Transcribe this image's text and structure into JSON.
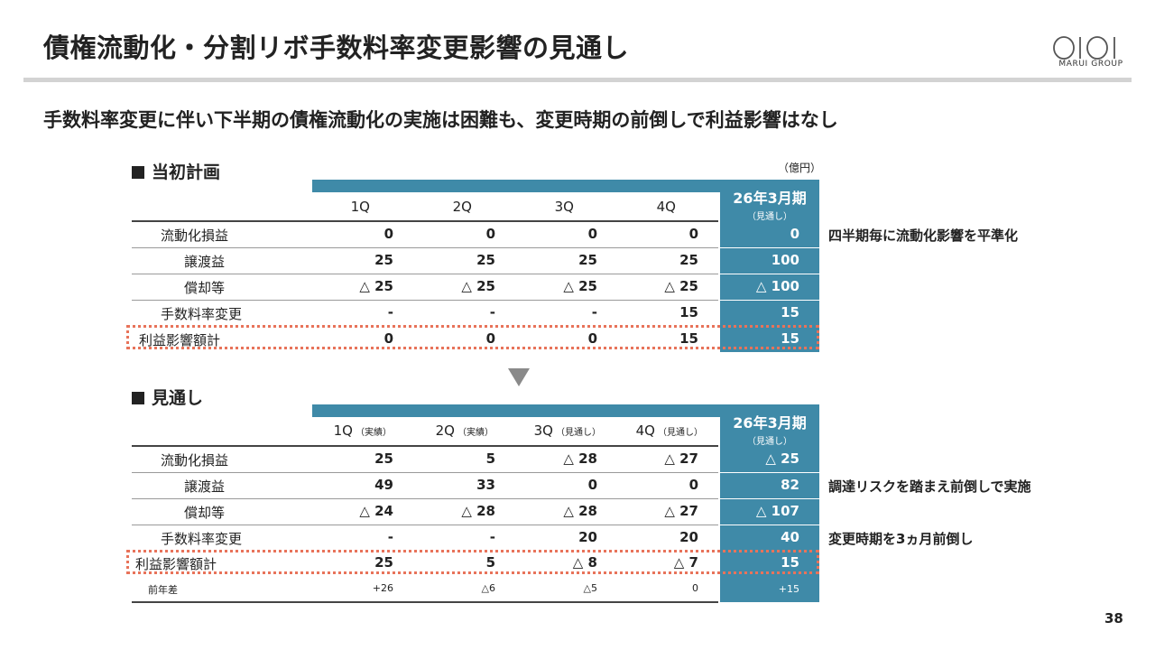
{
  "header": {
    "title": "債権流動化・分割リボ手数料率変更影響の見通し",
    "logo_text": "MARUI GROUP"
  },
  "subtitle": "手数料率変更に伴い下半期の債権流動化の実施は困難も、変更時期の前倒しで利益影響はなし",
  "unit": "（億円）",
  "plan": {
    "label": "当初計画",
    "columns": [
      {
        "label": "1Q",
        "note": ""
      },
      {
        "label": "2Q",
        "note": ""
      },
      {
        "label": "3Q",
        "note": ""
      },
      {
        "label": "4Q",
        "note": ""
      }
    ],
    "fy_label": "26年3月期",
    "fy_note": "（見通し）",
    "rows": [
      {
        "label": "流動化損益",
        "values": [
          "0",
          "0",
          "0",
          "0"
        ],
        "fy": "0",
        "note": "四半期毎に流動化影響を平準化"
      },
      {
        "label": "譲渡益",
        "values": [
          "25",
          "25",
          "25",
          "25"
        ],
        "fy": "100",
        "note": ""
      },
      {
        "label": "償却等",
        "values": [
          "△ 25",
          "△ 25",
          "△ 25",
          "△ 25"
        ],
        "fy": "△ 100",
        "note": ""
      },
      {
        "label": "手数料率変更",
        "values": [
          "-",
          "-",
          "-",
          "15"
        ],
        "fy": "15",
        "note": ""
      },
      {
        "label": "利益影響額計",
        "values": [
          "0",
          "0",
          "0",
          "15"
        ],
        "fy": "15",
        "note": ""
      }
    ]
  },
  "outlook": {
    "label": "見通し",
    "columns": [
      {
        "label": "1Q",
        "note": "（実績）"
      },
      {
        "label": "2Q",
        "note": "（実績）"
      },
      {
        "label": "3Q",
        "note": "（見通し）"
      },
      {
        "label": "4Q",
        "note": "（見通し）"
      }
    ],
    "fy_label": "26年3月期",
    "fy_note": "（見通し）",
    "rows": [
      {
        "label": "流動化損益",
        "values": [
          "25",
          "5",
          "△ 28",
          "△ 27"
        ],
        "fy": "△ 25",
        "note": ""
      },
      {
        "label": "譲渡益",
        "values": [
          "49",
          "33",
          "0",
          "0"
        ],
        "fy": "82",
        "note": "調達リスクを踏まえ前倒しで実施"
      },
      {
        "label": "償却等",
        "values": [
          "△ 24",
          "△ 28",
          "△ 28",
          "△ 27"
        ],
        "fy": "△ 107",
        "note": ""
      },
      {
        "label": "手数料率変更",
        "values": [
          "-",
          "-",
          "20",
          "20"
        ],
        "fy": "40",
        "note": "変更時期を3ヵ月前倒し"
      },
      {
        "label": "利益影響額計",
        "values": [
          "25",
          "5",
          "△ 8",
          "△ 7"
        ],
        "fy": "15",
        "note": ""
      },
      {
        "label": "前年差",
        "values": [
          "+26",
          "△6",
          "△5",
          "0"
        ],
        "fy": "+15",
        "note": ""
      }
    ]
  },
  "page_number": "38"
}
